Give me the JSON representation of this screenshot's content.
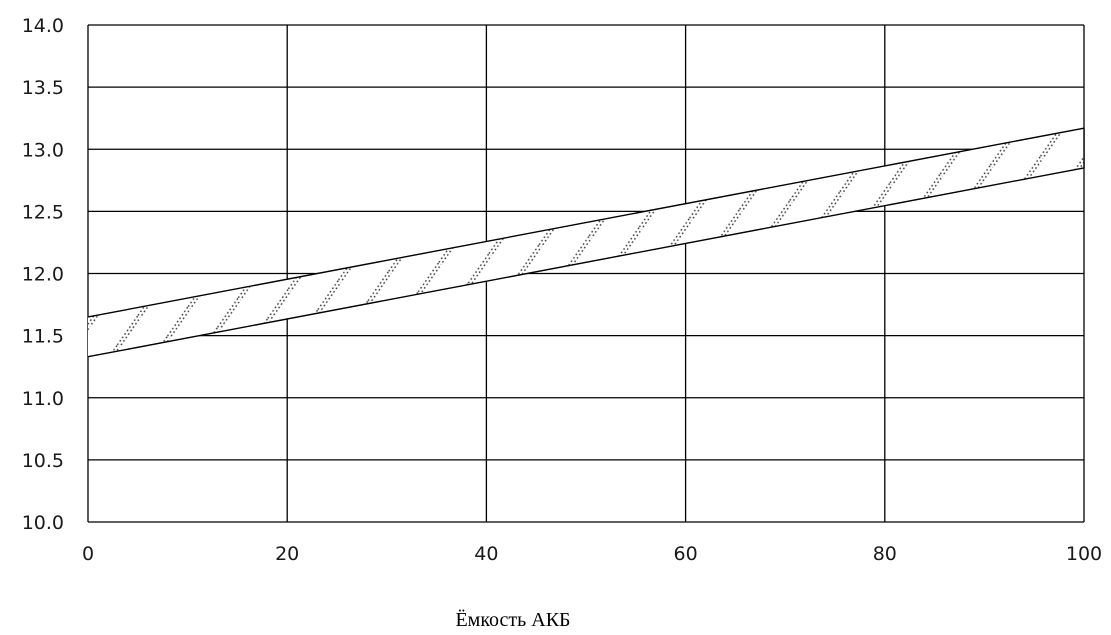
{
  "chart_data": {
    "type": "area",
    "title": "",
    "xlabel": "Ёмкость АКБ",
    "ylabel": "",
    "xlim": [
      0,
      100
    ],
    "ylim": [
      10.0,
      14.0
    ],
    "x_ticks": [
      "0",
      "20",
      "40",
      "60",
      "80",
      "100"
    ],
    "y_ticks": [
      "10.0",
      "10.5",
      "11.0",
      "11.5",
      "12.0",
      "12.5",
      "13.0",
      "13.5",
      "14.0"
    ],
    "grid": true,
    "band": {
      "x": [
        0,
        100
      ],
      "upper": [
        11.65,
        13.17
      ],
      "lower": [
        11.33,
        12.85
      ]
    },
    "colors": {
      "line": "#000000",
      "grid": "#000000",
      "hatch": "#333333"
    }
  }
}
